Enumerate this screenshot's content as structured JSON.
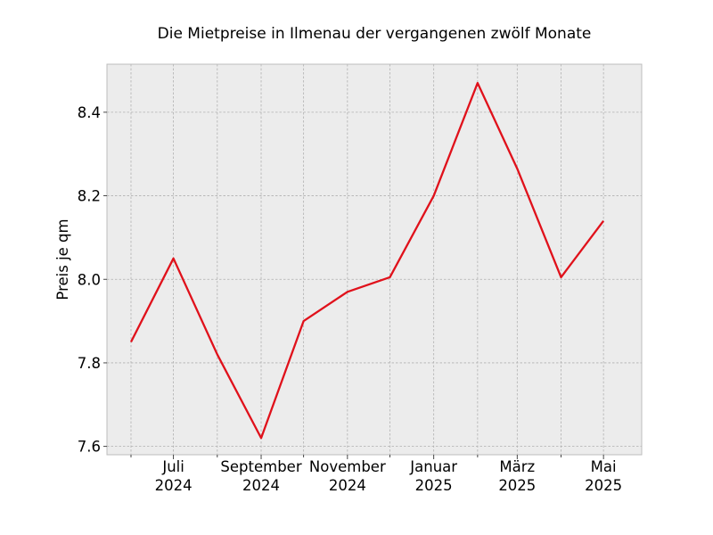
{
  "chart_data": {
    "type": "line",
    "title": "Die Mietpreise in Ilmenau der vergangenen zwölf Monate",
    "xlabel": "",
    "ylabel": "Preis je qm",
    "x": [
      "2024-06",
      "2024-07",
      "2024-08",
      "2024-09",
      "2024-10",
      "2024-11",
      "2024-12",
      "2025-01",
      "2025-02",
      "2025-03",
      "2025-04",
      "2025-05"
    ],
    "series": [
      {
        "values": [
          7.85,
          8.05,
          7.82,
          7.62,
          7.9,
          7.97,
          8.005,
          8.2,
          8.47,
          8.265,
          8.005,
          8.14
        ],
        "color": "#e0111b"
      }
    ],
    "xlim": [
      "2024-05-15",
      "2025-05-28"
    ],
    "ylim": [
      7.58,
      8.515
    ],
    "yticks": [
      7.6,
      7.8,
      8.0,
      8.2,
      8.4
    ],
    "ytick_labels": [
      "7.6",
      "7.8",
      "8.0",
      "8.2",
      "8.4"
    ],
    "xticks_major": [
      {
        "x": "2024-07",
        "line1": "Juli",
        "line2": "2024"
      },
      {
        "x": "2024-09",
        "line1": "September",
        "line2": "2024"
      },
      {
        "x": "2024-11",
        "line1": "November",
        "line2": "2024"
      },
      {
        "x": "2025-01",
        "line1": "Januar",
        "line2": "2025"
      },
      {
        "x": "2025-03",
        "line1": "März",
        "line2": "2025"
      },
      {
        "x": "2025-05",
        "line1": "Mai",
        "line2": "2025"
      }
    ],
    "xticks_minor": [
      "2024-06",
      "2024-08",
      "2024-10",
      "2024-12",
      "2025-02",
      "2025-04"
    ],
    "grid": true,
    "background_color": "#ececec"
  }
}
